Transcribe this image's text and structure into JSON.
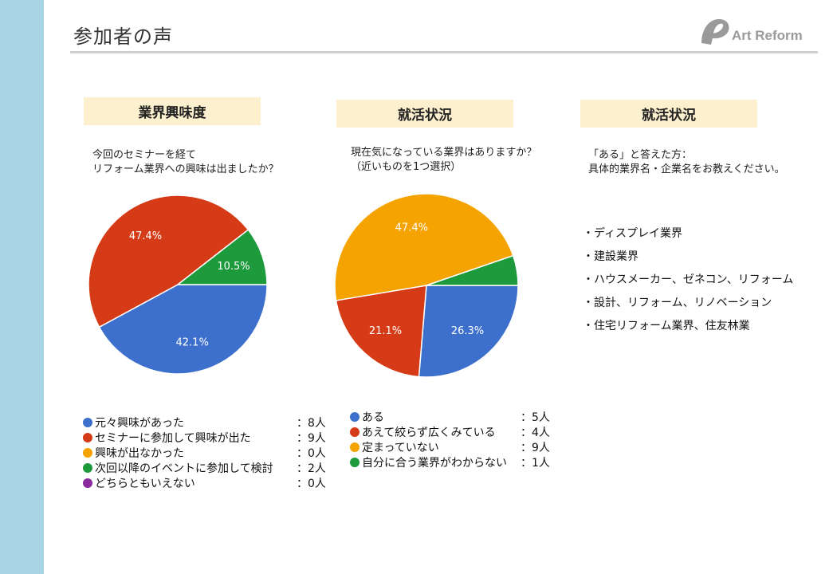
{
  "slide": {
    "title": "参加者の声",
    "logo_text": "Art Reform",
    "accent_color": "#a8d4e6"
  },
  "sections": [
    {
      "heading": "業界興味度",
      "question_lines": [
        "今回のセミナーを経て",
        "リフォーム業界への興味は出ましたか？"
      ]
    },
    {
      "heading": "就活状況",
      "question_lines": [
        "現在気になっている業界はありますか？",
        "（近いものを1つ選択）"
      ]
    },
    {
      "heading": "就活状況",
      "question_lines": [
        "「ある」と答えた方：",
        "具体的業界名・企業名をお教えください。"
      ],
      "answers": [
        "・ディスプレイ業界",
        "・建設業界",
        "・ハウスメーカー、ゼネコン、リフォーム",
        "・設計、リフォーム、リノベーション",
        "・住宅リフォーム業界、住友林業"
      ]
    }
  ],
  "chart_data": [
    {
      "type": "pie",
      "title": "業界興味度",
      "slices": [
        {
          "label": "元々興味があった",
          "value": 8,
          "percent_label": "42.1%",
          "color": "#3d6fcc",
          "count_label": "：8人"
        },
        {
          "label": "セミナーに参加して興味が出た",
          "value": 9,
          "percent_label": "47.4%",
          "color": "#d63b18",
          "count_label": "：9人"
        },
        {
          "label": "興味が出なかった",
          "value": 0,
          "percent_label": "",
          "color": "#f5a300",
          "count_label": "：0人"
        },
        {
          "label": "次回以降のイベントに参加して検討",
          "value": 2,
          "percent_label": "10.5%",
          "color": "#1c9a3c",
          "count_label": "：2人"
        },
        {
          "label": "どちらともいえない",
          "value": 0,
          "percent_label": "",
          "color": "#8a2a9e",
          "count_label": "：0人"
        }
      ]
    },
    {
      "type": "pie",
      "title": "就活状況",
      "slices": [
        {
          "label": "ある",
          "value": 5,
          "percent_label": "26.3%",
          "color": "#3d6fcc",
          "count_label": "：5人"
        },
        {
          "label": "あえて絞らず広くみている",
          "value": 4,
          "percent_label": "21.1%",
          "color": "#d63b18",
          "count_label": "：4人"
        },
        {
          "label": "定まっていない",
          "value": 9,
          "percent_label": "47.4%",
          "color": "#f5a300",
          "count_label": "：9人"
        },
        {
          "label": "自分に合う業界がわからない",
          "value": 1,
          "percent_label": "",
          "color": "#1c9a3c",
          "count_label": "：1人"
        }
      ]
    }
  ]
}
